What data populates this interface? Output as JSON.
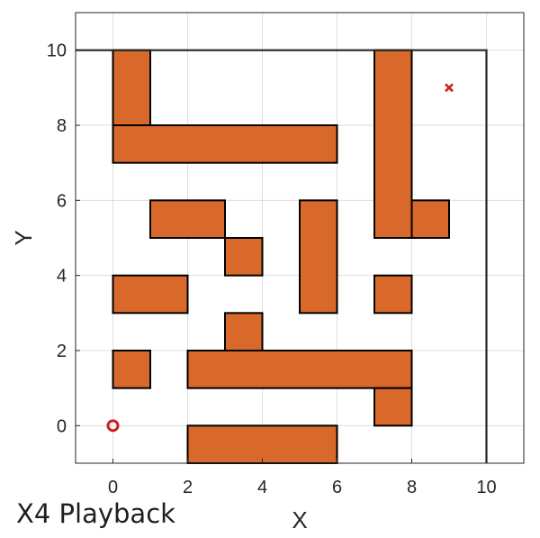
{
  "chart_data": {
    "type": "scatter",
    "title": "",
    "xlabel": "X",
    "ylabel": "Y",
    "xlim": [
      -1,
      11
    ],
    "ylim": [
      -1,
      11
    ],
    "xticks": [
      0,
      2,
      4,
      6,
      8,
      10
    ],
    "yticks": [
      0,
      2,
      4,
      6,
      8,
      10
    ],
    "grid": true,
    "obstacles": [
      {
        "x": 0,
        "y": 8,
        "w": 1,
        "h": 2
      },
      {
        "x": 0,
        "y": 7,
        "w": 6,
        "h": 1
      },
      {
        "x": 7,
        "y": 5,
        "w": 1,
        "h": 5
      },
      {
        "x": 8,
        "y": 5,
        "w": 1,
        "h": 1
      },
      {
        "x": 1,
        "y": 5,
        "w": 2,
        "h": 1
      },
      {
        "x": 3,
        "y": 4,
        "w": 1,
        "h": 1
      },
      {
        "x": 5,
        "y": 3,
        "w": 1,
        "h": 3
      },
      {
        "x": 0,
        "y": 3,
        "w": 2,
        "h": 1
      },
      {
        "x": 7,
        "y": 3,
        "w": 1,
        "h": 1
      },
      {
        "x": 3,
        "y": 2,
        "w": 1,
        "h": 1
      },
      {
        "x": 0,
        "y": 1,
        "w": 1,
        "h": 1
      },
      {
        "x": 2,
        "y": 1,
        "w": 6,
        "h": 1
      },
      {
        "x": 7,
        "y": 0,
        "w": 1,
        "h": 1
      },
      {
        "x": 2,
        "y": -1,
        "w": 4,
        "h": 1
      }
    ],
    "boundary": [
      [
        10,
        -1
      ],
      [
        10,
        10
      ],
      [
        -1,
        10
      ]
    ],
    "start": {
      "x": 0,
      "y": 0,
      "marker": "o"
    },
    "goal": {
      "x": 9,
      "y": 9,
      "marker": "x"
    }
  },
  "overlay_label": "X4 Playback",
  "colors": {
    "obstacle_fill": "#D9692A",
    "obstacle_stroke": "#000000",
    "grid": "#DEDEDE",
    "axes": "#262626",
    "start_marker": "#CC1F1F",
    "goal_marker": "#CC1F1F"
  }
}
